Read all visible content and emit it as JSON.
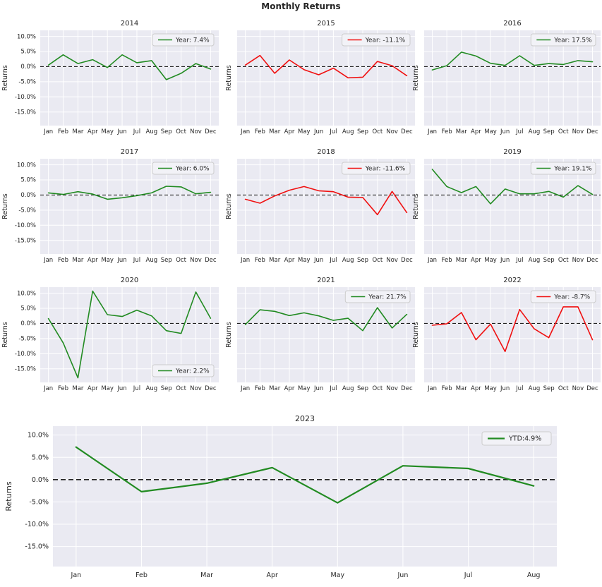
{
  "figure": {
    "suptitle": "Monthly Returns"
  },
  "style": {
    "axes_background": "#eaeaf2",
    "grid_color": "#ffffff",
    "zero_line_color": "#222222",
    "positive_color": "#228b22",
    "negative_color": "#f01010",
    "text_color": "#262626",
    "legend_background": "#f2f2f7",
    "legend_border": "#cccccc"
  },
  "axis": {
    "ylabel": "Returns",
    "ytick_values": [
      10,
      5,
      0,
      -5,
      -10,
      -15
    ],
    "ytick_labels": [
      "10.0%",
      "5.0%",
      "0.0%",
      "-5.0%",
      "-10.0%",
      "-15.0%"
    ],
    "ylim": [
      -19.5,
      12
    ],
    "months_full": [
      "Jan",
      "Feb",
      "Mar",
      "Apr",
      "May",
      "Jun",
      "Jul",
      "Aug",
      "Sep",
      "Oct",
      "Nov",
      "Dec"
    ],
    "months_2023": [
      "Jan",
      "Feb",
      "Mar",
      "Apr",
      "May",
      "Jun",
      "Jul",
      "Aug"
    ]
  },
  "chart_data": [
    {
      "type": "line",
      "title": "2014",
      "legend": "Year: 7.4%",
      "color": "positive",
      "legend_position": "top-right",
      "categories": [
        "Jan",
        "Feb",
        "Mar",
        "Apr",
        "May",
        "Jun",
        "Jul",
        "Aug",
        "Sep",
        "Oct",
        "Nov",
        "Dec"
      ],
      "values": [
        0.5,
        3.9,
        1.0,
        2.3,
        -0.3,
        3.9,
        1.3,
        2.0,
        -4.3,
        -2.2,
        1.0,
        -0.8
      ]
    },
    {
      "type": "line",
      "title": "2015",
      "legend": "Year: -11.1%",
      "color": "negative",
      "legend_position": "top-right",
      "categories": [
        "Jan",
        "Feb",
        "Mar",
        "Apr",
        "May",
        "Jun",
        "Jul",
        "Aug",
        "Sep",
        "Oct",
        "Nov",
        "Dec"
      ],
      "values": [
        0.5,
        3.7,
        -2.2,
        2.2,
        -1.0,
        -2.7,
        -0.5,
        -3.7,
        -3.5,
        1.7,
        0.3,
        -3.0
      ]
    },
    {
      "type": "line",
      "title": "2016",
      "legend": "Year: 17.5%",
      "color": "positive",
      "legend_position": "top-right",
      "categories": [
        "Jan",
        "Feb",
        "Mar",
        "Apr",
        "May",
        "Jun",
        "Jul",
        "Aug",
        "Sep",
        "Oct",
        "Nov",
        "Dec"
      ],
      "values": [
        -1.1,
        0.3,
        4.8,
        3.5,
        1.1,
        0.4,
        3.6,
        0.4,
        1.0,
        0.7,
        2.0,
        1.6
      ]
    },
    {
      "type": "line",
      "title": "2017",
      "legend": "Year: 6.0%",
      "color": "positive",
      "legend_position": "top-right",
      "categories": [
        "Jan",
        "Feb",
        "Mar",
        "Apr",
        "May",
        "Jun",
        "Jul",
        "Aug",
        "Sep",
        "Oct",
        "Nov",
        "Dec"
      ],
      "values": [
        0.7,
        0.2,
        1.1,
        0.3,
        -1.4,
        -0.9,
        -0.2,
        0.7,
        2.9,
        2.7,
        0.4,
        0.9
      ]
    },
    {
      "type": "line",
      "title": "2018",
      "legend": "Year: -11.6%",
      "color": "negative",
      "legend_position": "top-right",
      "categories": [
        "Jan",
        "Feb",
        "Mar",
        "Apr",
        "May",
        "Jun",
        "Jul",
        "Aug",
        "Sep",
        "Oct",
        "Nov",
        "Dec"
      ],
      "values": [
        -1.4,
        -2.7,
        -0.3,
        1.6,
        2.8,
        1.4,
        1.1,
        -0.7,
        -0.8,
        -6.5,
        1.2,
        -5.8
      ]
    },
    {
      "type": "line",
      "title": "2019",
      "legend": "Year: 19.1%",
      "color": "positive",
      "legend_position": "top-right",
      "categories": [
        "Jan",
        "Feb",
        "Mar",
        "Apr",
        "May",
        "Jun",
        "Jul",
        "Aug",
        "Sep",
        "Oct",
        "Nov",
        "Dec"
      ],
      "values": [
        8.5,
        2.8,
        0.8,
        2.8,
        -2.9,
        2.0,
        0.4,
        0.4,
        1.2,
        -0.7,
        3.1,
        0.2
      ]
    },
    {
      "type": "line",
      "title": "2020",
      "legend": "Year: 2.2%",
      "color": "positive",
      "legend_position": "bottom-right",
      "categories": [
        "Jan",
        "Feb",
        "Mar",
        "Apr",
        "May",
        "Jun",
        "Jul",
        "Aug",
        "Sep",
        "Oct",
        "Nov",
        "Dec"
      ],
      "values": [
        1.6,
        -6.4,
        -18.0,
        10.7,
        2.9,
        2.3,
        4.4,
        2.5,
        -2.4,
        -3.3,
        10.4,
        1.7
      ]
    },
    {
      "type": "line",
      "title": "2021",
      "legend": "Year: 21.7%",
      "color": "positive",
      "legend_position": "top-right",
      "categories": [
        "Jan",
        "Feb",
        "Mar",
        "Apr",
        "May",
        "Jun",
        "Jul",
        "Aug",
        "Sep",
        "Oct",
        "Nov",
        "Dec"
      ],
      "values": [
        -0.4,
        4.5,
        4.0,
        2.6,
        3.5,
        2.5,
        1.0,
        1.7,
        -2.4,
        5.2,
        -1.5,
        3.0
      ]
    },
    {
      "type": "line",
      "title": "2022",
      "legend": "Year: -8.7%",
      "color": "negative",
      "legend_position": "top-right",
      "categories": [
        "Jan",
        "Feb",
        "Mar",
        "Apr",
        "May",
        "Jun",
        "Jul",
        "Aug",
        "Sep",
        "Oct",
        "Nov",
        "Dec"
      ],
      "values": [
        -0.6,
        -0.1,
        3.6,
        -5.4,
        -0.2,
        -9.3,
        4.6,
        -1.8,
        -4.7,
        5.5,
        5.5,
        -5.4
      ]
    },
    {
      "type": "line",
      "title": "2023",
      "legend": "YTD:4.9%",
      "color": "positive",
      "legend_position": "top-right",
      "categories": [
        "Jan",
        "Feb",
        "Mar",
        "Apr",
        "May",
        "Jun",
        "Jul",
        "Aug"
      ],
      "values": [
        7.3,
        -2.7,
        -0.8,
        2.7,
        -5.2,
        3.1,
        2.5,
        -1.4
      ]
    }
  ]
}
